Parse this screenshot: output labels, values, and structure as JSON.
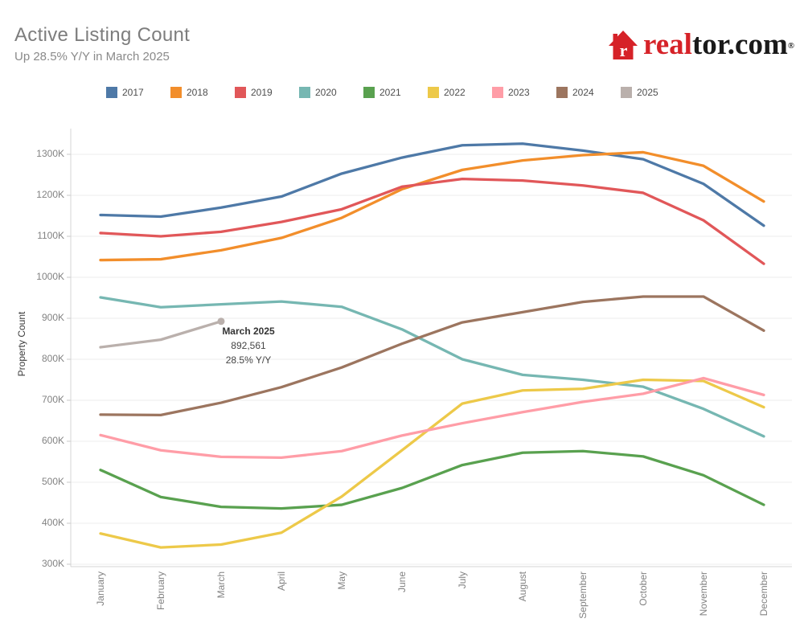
{
  "header": {
    "title": "Active Listing Count",
    "subtitle": "Up 28.5% Y/Y in March 2025"
  },
  "logo": {
    "house_icon": "realtor-house-icon",
    "text_red": "real",
    "text_black": "tor.com",
    "registered_mark": "®",
    "brand_red": "#d62228"
  },
  "legend": {
    "position": "top",
    "items": [
      {
        "label": "2017",
        "color": "#4e79a7"
      },
      {
        "label": "2018",
        "color": "#f28e2b"
      },
      {
        "label": "2019",
        "color": "#e15759"
      },
      {
        "label": "2020",
        "color": "#76b7b2"
      },
      {
        "label": "2021",
        "color": "#59a14f"
      },
      {
        "label": "2022",
        "color": "#edc949"
      },
      {
        "label": "2023",
        "color": "#ff9da7"
      },
      {
        "label": "2024",
        "color": "#9c755f"
      },
      {
        "label": "2025",
        "color": "#bab0ac"
      }
    ]
  },
  "chart_data": {
    "type": "line",
    "title": "Active Listing Count",
    "xlabel": "",
    "ylabel": "Property Count",
    "unit": "thousands of properties",
    "ylim": [
      300,
      1300
    ],
    "ytick_step": 100,
    "ytick_suffix": "K",
    "grid": "horizontal",
    "legend_position": "top",
    "x": [
      "January",
      "February",
      "March",
      "April",
      "May",
      "June",
      "July",
      "August",
      "September",
      "October",
      "November",
      "December"
    ],
    "series": [
      {
        "name": "2017",
        "color": "#4e79a7",
        "values": [
          1152,
          1148,
          1170,
          1197,
          1253,
          1292,
          1322,
          1326,
          1309,
          1288,
          1228,
          1126
        ]
      },
      {
        "name": "2018",
        "color": "#f28e2b",
        "values": [
          1042,
          1044,
          1066,
          1096,
          1145,
          1215,
          1262,
          1285,
          1298,
          1305,
          1272,
          1185
        ]
      },
      {
        "name": "2019",
        "color": "#e15759",
        "values": [
          1108,
          1100,
          1111,
          1135,
          1166,
          1221,
          1240,
          1236,
          1224,
          1206,
          1139,
          1033
        ]
      },
      {
        "name": "2020",
        "color": "#76b7b2",
        "values": [
          951,
          927,
          934,
          941,
          928,
          873,
          800,
          762,
          750,
          733,
          679,
          612
        ]
      },
      {
        "name": "2021",
        "color": "#59a14f",
        "values": [
          530,
          464,
          440,
          436,
          445,
          486,
          542,
          572,
          576,
          563,
          517,
          445
        ]
      },
      {
        "name": "2022",
        "color": "#edc949",
        "values": [
          375,
          341,
          348,
          377,
          465,
          578,
          692,
          724,
          728,
          750,
          747,
          683
        ]
      },
      {
        "name": "2023",
        "color": "#ff9da7",
        "values": [
          615,
          578,
          562,
          560,
          576,
          614,
          644,
          671,
          696,
          716,
          754,
          713
        ]
      },
      {
        "name": "2024",
        "color": "#9c755f",
        "values": [
          665,
          664,
          694,
          732,
          780,
          838,
          890,
          915,
          940,
          953,
          953,
          870
        ]
      },
      {
        "name": "2025",
        "color": "#bab0ac",
        "values": [
          829.4,
          847.8,
          892.561
        ],
        "end_marker": true
      }
    ],
    "annotation": {
      "series": "2025",
      "month": "March",
      "title": "March 2025",
      "value": "892,561",
      "change": "28.5% Y/Y"
    }
  }
}
